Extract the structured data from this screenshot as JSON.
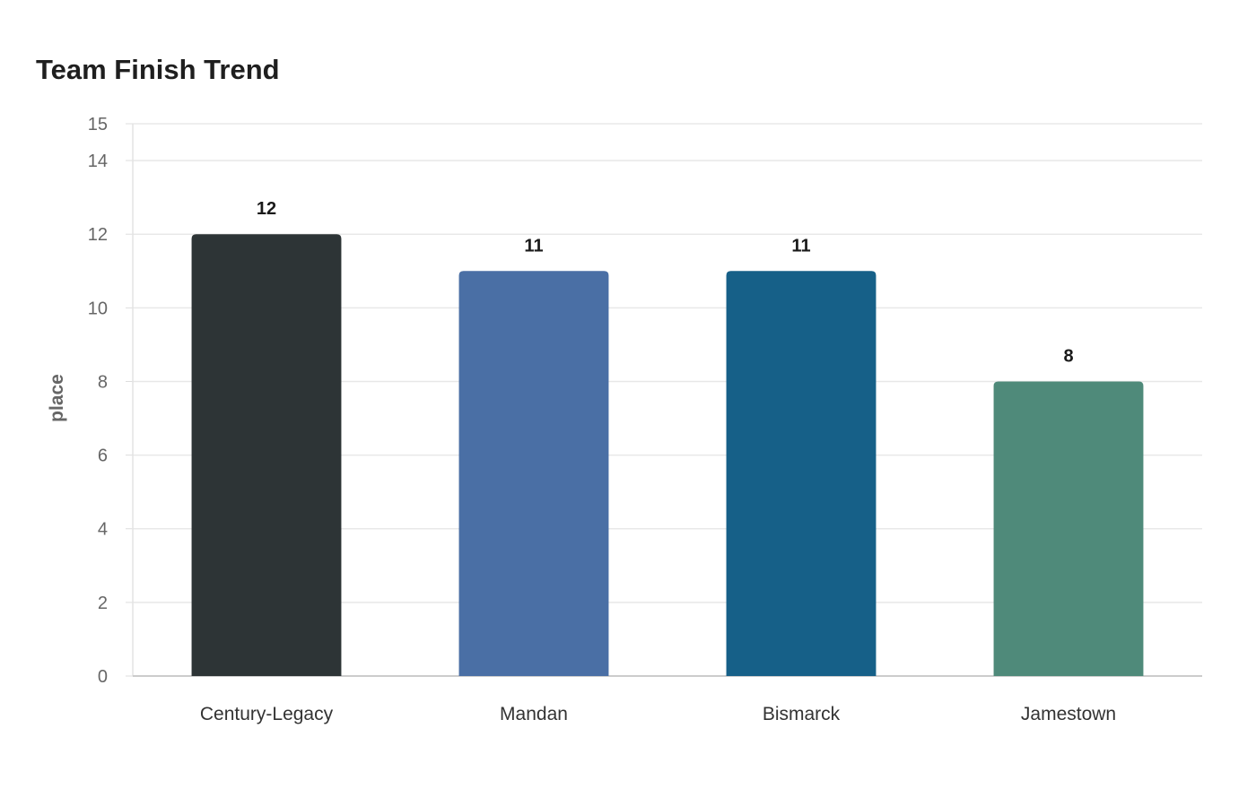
{
  "chart_data": {
    "type": "bar",
    "title": "Team Finish Trend",
    "xlabel": "",
    "ylabel": "place",
    "categories": [
      "Century-Legacy",
      "Mandan",
      "Bismarck",
      "Jamestown"
    ],
    "values": [
      12,
      11,
      11,
      8
    ],
    "colors": [
      "#2d3436",
      "#4a6fa5",
      "#166088",
      "#4f8a7a"
    ],
    "ylim": [
      0,
      15
    ],
    "yticks": [
      0,
      2,
      4,
      6,
      8,
      10,
      12,
      14,
      15
    ],
    "grid": true,
    "legend": "none"
  }
}
